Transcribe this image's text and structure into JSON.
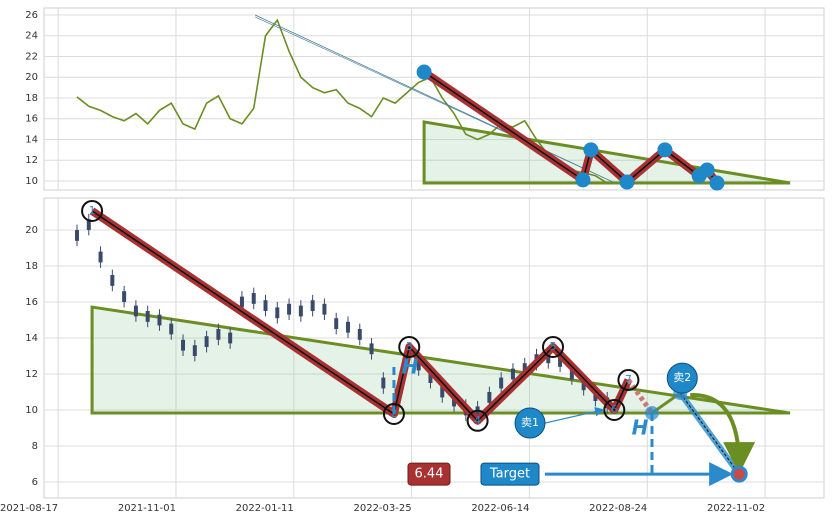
{
  "chart_data": [
    {
      "type": "line",
      "xlim": [
        -6,
        325
      ],
      "ylim": [
        9.13,
        26.67
      ],
      "yticks": [
        10,
        12,
        14,
        16,
        18,
        20,
        22,
        24,
        26
      ],
      "grid": true,
      "x": [
        8,
        13,
        18,
        23,
        28,
        33,
        38,
        43,
        48,
        53,
        58,
        63,
        68,
        73,
        78,
        83,
        88,
        93,
        98,
        103,
        108,
        113,
        118,
        123,
        128,
        133,
        138,
        143,
        148,
        153,
        158,
        163,
        168,
        173,
        178,
        183,
        188,
        193,
        198,
        203,
        208,
        213,
        218,
        223,
        228,
        233
      ],
      "series": [
        {
          "color": "#6b8e23",
          "values": [
            18.1,
            17.2,
            16.8,
            16.2,
            15.8,
            16.5,
            15.5,
            16.8,
            17.5,
            15.5,
            15.0,
            17.5,
            18.2,
            16.0,
            15.5,
            17.0,
            24.0,
            25.5,
            22.5,
            20.0,
            19.0,
            18.5,
            18.8,
            17.5,
            17.0,
            16.2,
            18.0,
            17.5,
            18.5,
            19.5,
            20.0,
            18.0,
            16.5,
            14.5,
            14.0,
            14.5,
            15.5,
            15.2,
            15.8,
            14.0,
            12.5,
            11.5,
            11.0,
            10.8,
            10.5,
            9.8
          ]
        }
      ],
      "pattern": {
        "x": [
          155.3,
          222.7,
          226.1,
          241.4,
          257.5,
          272,
          275.4,
          279.6
        ],
        "values": [
          20.5,
          10.1,
          13.0,
          9.9,
          13.0,
          10.5,
          11.06,
          9.8
        ],
        "color": "#1e88c8"
      },
      "triangle": {
        "x": [
          155.3,
          310.6
        ],
        "top": [
          15.69,
          9.81
        ],
        "bottom": [
          9.81,
          9.81
        ],
        "color": "#6b8e23"
      },
      "trend": {
        "x": [
          83.6,
          236.3
        ],
        "values": [
          26.0,
          9.81
        ]
      }
    },
    {
      "type": "candlestick",
      "xlim": [
        -6,
        325
      ],
      "ylim": [
        5.11,
        21.78
      ],
      "yticks": [
        6,
        8,
        10,
        12,
        14,
        16,
        18,
        20
      ],
      "grid": true,
      "xticks": [
        {
          "value": 0,
          "label": "2021-08-17"
        },
        {
          "value": 50,
          "label": "2021-11-01"
        },
        {
          "value": 100,
          "label": "2022-01-11"
        },
        {
          "value": 150,
          "label": "2022-03-25"
        },
        {
          "value": 200,
          "label": "2022-06-14"
        },
        {
          "value": 250,
          "label": "2022-08-24"
        },
        {
          "value": 300,
          "label": "2022-11-02"
        }
      ],
      "x": [
        8,
        13,
        18,
        23,
        28,
        33,
        38,
        43,
        48,
        53,
        58,
        63,
        68,
        73,
        78,
        83,
        88,
        93,
        98,
        103,
        108,
        113,
        118,
        123,
        128,
        133,
        138,
        143,
        148,
        153,
        158,
        163,
        168,
        173,
        178,
        183,
        188,
        193,
        198,
        203,
        208,
        213,
        218,
        223,
        228,
        233
      ],
      "color": "#3a4a6b",
      "low": [
        19.1,
        19.7,
        17.9,
        16.6,
        15.7,
        14.9,
        14.6,
        14.4,
        13.9,
        13.0,
        12.7,
        13.2,
        13.6,
        13.4,
        15.4,
        15.6,
        15.2,
        14.8,
        15.0,
        14.9,
        15.2,
        15.0,
        14.2,
        14.0,
        13.6,
        12.8,
        10.9,
        10.0,
        12.2,
        11.9,
        11.2,
        10.4,
        9.9,
        9.4,
        9.3,
        10.1,
        10.9,
        11.4,
        11.7,
        12.2,
        12.3,
        12.1,
        11.4,
        10.8,
        10.2,
        9.8
      ],
      "high": [
        20.3,
        20.9,
        19.1,
        17.8,
        16.9,
        16.1,
        15.8,
        15.6,
        15.1,
        14.2,
        13.9,
        14.4,
        14.8,
        14.6,
        16.6,
        16.8,
        16.4,
        16.0,
        16.2,
        16.1,
        16.4,
        16.2,
        15.4,
        15.2,
        14.8,
        14.0,
        12.1,
        11.2,
        13.4,
        13.1,
        12.4,
        11.6,
        11.1,
        10.6,
        10.5,
        11.3,
        12.1,
        12.6,
        12.9,
        13.4,
        13.5,
        13.3,
        12.6,
        12.0,
        11.4,
        11.0
      ],
      "pattern": {
        "x": [
          14.4,
          142.5,
          149,
          178,
          210,
          236,
          242
        ],
        "values": [
          21.06,
          9.78,
          13.5,
          9.4,
          13.5,
          10.0,
          11.67
        ],
        "labels": [
          "1",
          "2",
          "3",
          "4",
          "5",
          "6",
          "7"
        ]
      },
      "triangle": {
        "x": [
          14.4,
          310.6
        ],
        "top": [
          15.72,
          9.83
        ],
        "bottom": [
          9.83,
          9.83
        ],
        "color": "#6b8e23"
      },
      "projection": {
        "x": [
          242,
          252,
          264,
          289
        ],
        "values": [
          11.67,
          9.83,
          10.94,
          6.44
        ]
      },
      "sells": [
        {
          "label": "卖1",
          "x": 252,
          "value": 9.83
        },
        {
          "label": "卖2",
          "x": 264,
          "value": 10.94
        }
      ],
      "h_marks": [
        {
          "label": "H",
          "x": 142.5,
          "value": 9.78
        },
        {
          "label": "H",
          "x": 252,
          "value": 9.83
        }
      ],
      "target": {
        "label": "Target",
        "x": 289,
        "value": 6.44
      }
    }
  ]
}
